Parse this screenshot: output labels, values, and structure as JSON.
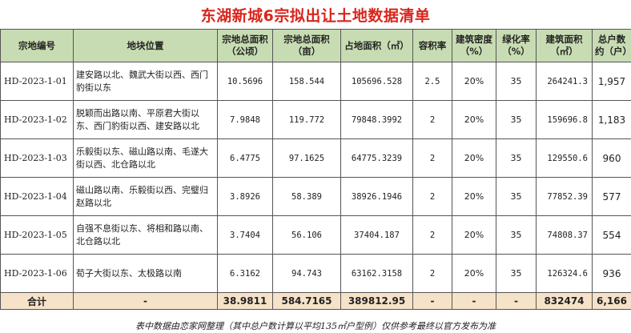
{
  "title": "东湖新城6宗拟出让土地数据清单",
  "headers": [
    "宗地编号",
    "地块位置",
    "宗地总面积（公顷）",
    "宗地总面积（亩）",
    "占地面积（㎡）",
    "容积率",
    "建筑密度（%）",
    "绿化率（%）",
    "建筑面积（㎡）",
    "总户数约（户）"
  ],
  "rows": [
    {
      "code": "HD-2023-1-01",
      "location": "建安路以北、魏武大街以西、西门豹街以东",
      "area_ha": "10.5696",
      "area_mu": "158.544",
      "site_area": "105696.528",
      "far": "2.5",
      "density": "20%",
      "green": "35",
      "floor_area": "264241.3",
      "households": "1,957"
    },
    {
      "code": "HD-2023-1-02",
      "location": "脱颖而出路以南、平原君大街以东、西门豹街以西、建安路以北",
      "area_ha": "7.9848",
      "area_mu": "119.772",
      "site_area": "79848.3992",
      "far": "2",
      "density": "20%",
      "green": "35",
      "floor_area": "159696.8",
      "households": "1,183"
    },
    {
      "code": "HD-2023-1-03",
      "location": "乐毅街以东、磁山路以南、毛遂大街以西、北仓路以北",
      "area_ha": "6.4775",
      "area_mu": "97.1625",
      "site_area": "64775.3239",
      "far": "2",
      "density": "20%",
      "green": "35",
      "floor_area": "129550.6",
      "households": "960"
    },
    {
      "code": "HD-2023-1-04",
      "location": "磁山路以南、乐毅街以西、完璧归赵路以北",
      "area_ha": "3.8926",
      "area_mu": "58.389",
      "site_area": "38926.1946",
      "far": "2",
      "density": "20%",
      "green": "35",
      "floor_area": "77852.39",
      "households": "577"
    },
    {
      "code": "HD-2023-1-05",
      "location": "自强不息街以东、将相和路以南、北仓路以北",
      "area_ha": "3.7404",
      "area_mu": "56.106",
      "site_area": "37404.187",
      "far": "2",
      "density": "20%",
      "green": "35",
      "floor_area": "74808.37",
      "households": "554"
    },
    {
      "code": "HD-2023-1-06",
      "location": "荀子大街以东、太极路以南",
      "area_ha": "6.3162",
      "area_mu": "94.743",
      "site_area": "63162.3158",
      "far": "2",
      "density": "20%",
      "green": "35",
      "floor_area": "126324.6",
      "households": "936"
    }
  ],
  "total": {
    "label": "合计",
    "location": "-",
    "area_ha": "38.9811",
    "area_mu": "584.7165",
    "site_area": "389812.95",
    "far": "-",
    "density": "-",
    "green": "-",
    "floor_area": "832474",
    "households": "6,166"
  },
  "footer": "表中数据由恋家网整理（其中总户数计算以平均135㎡户型例）仅供参考最终以官方发布为准",
  "colors": {
    "title": "#d9251c",
    "header_bg": "#c8dcb3",
    "total_bg": "#f6e2c8"
  }
}
